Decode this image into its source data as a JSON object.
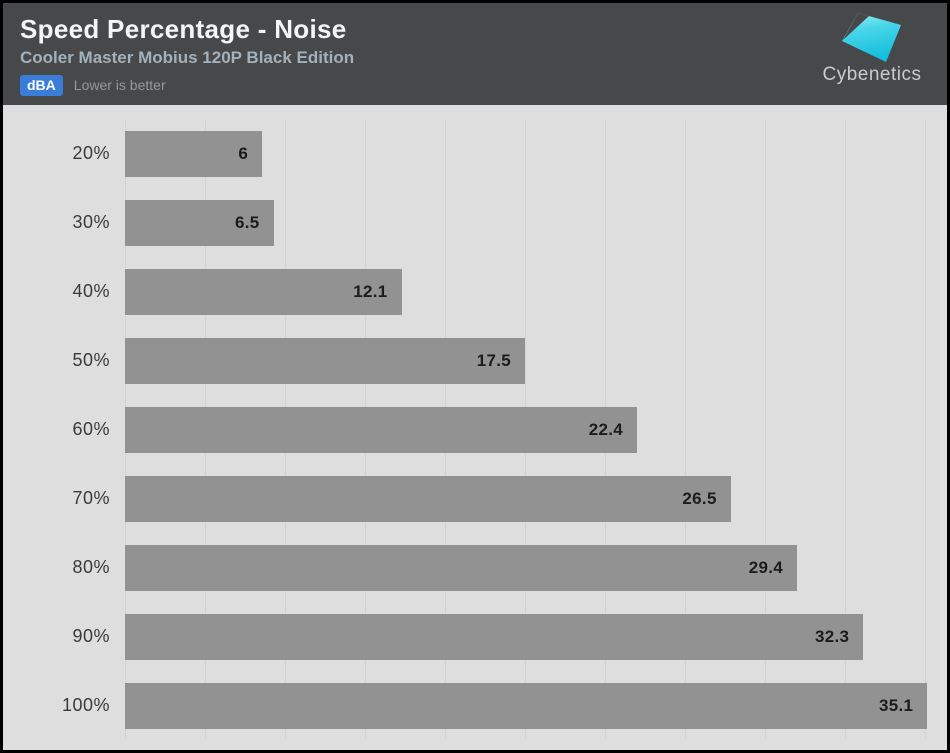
{
  "header": {
    "title": "Speed Percentage - Noise",
    "subtitle": "Cooler Master Mobius 120P Black Edition",
    "unit_badge": "dBA",
    "note": "Lower is better",
    "logo_text": "Cybenetics"
  },
  "colors": {
    "header_bg": "#47484a",
    "title": "#f5f5f5",
    "subtitle": "#a3b1bc",
    "badge_bg": "#3a7dd8",
    "note": "#979797",
    "chart_bg": "#dedede",
    "gridline": "#d2d2d2",
    "bar": "#929292",
    "category_label": "#3a3a3a",
    "value_label": "#1c1c1c",
    "logo_cyan_light": "#9ff0f4",
    "logo_cyan_dark": "#14bede"
  },
  "chart_data": {
    "type": "bar",
    "orientation": "horizontal",
    "title": "Speed Percentage - Noise",
    "subtitle": "Cooler Master Mobius 120P Black Edition",
    "unit": "dBA",
    "note": "Lower is better",
    "categories": [
      "20%",
      "30%",
      "40%",
      "50%",
      "60%",
      "70%",
      "80%",
      "90%",
      "100%"
    ],
    "values": [
      6,
      6.5,
      12.1,
      17.5,
      22.4,
      26.5,
      29.4,
      32.3,
      35.1
    ],
    "xlabel": "",
    "ylabel": "Speed Percentage",
    "xlim": [
      0,
      35
    ],
    "gridline_interval": 3.5,
    "grid": true,
    "legend": false,
    "value_labels": "inside-end"
  }
}
